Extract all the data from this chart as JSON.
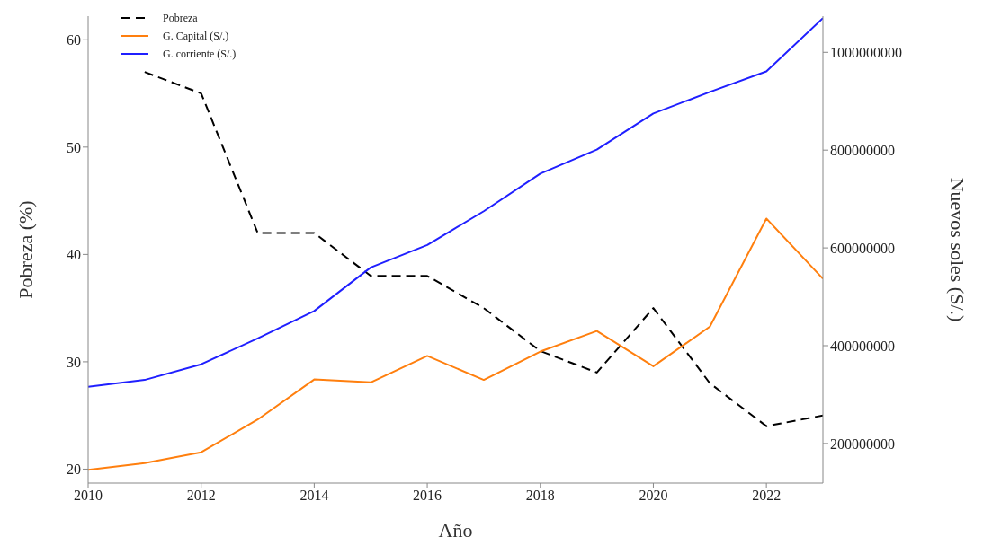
{
  "chart_data": {
    "type": "line",
    "xlabel": "Año",
    "ylabel": "Pobreza (%)",
    "y2label": "Nuevos soles (S/.)",
    "x": [
      2010,
      2011,
      2012,
      2013,
      2014,
      2015,
      2016,
      2017,
      2018,
      2019,
      2020,
      2021,
      2022,
      2023
    ],
    "series": [
      {
        "name": "Pobreza",
        "color": "#000000",
        "line_style": "dashed",
        "values": [
          null,
          57,
          55,
          42,
          42,
          38,
          38,
          35,
          31,
          29,
          35,
          28,
          24,
          25
        ]
      },
      {
        "name": "G. Capital (S/.)",
        "color": "#ff7f0e",
        "axis": "y2",
        "line_style": "solid",
        "values": [
          146000000,
          160000000,
          182000000,
          249000000,
          331000000,
          325000000,
          379000000,
          330000000,
          388000000,
          430000000,
          358000000,
          439000000,
          660000000,
          537000000
        ]
      },
      {
        "name": "G. corriente (S/.)",
        "color": "#1f1fff",
        "axis": "y2",
        "line_style": "solid",
        "values": [
          316000000,
          330000000,
          362000000,
          415000000,
          471000000,
          560000000,
          606000000,
          675000000,
          752000000,
          801000000,
          875000000,
          919000000,
          961000000,
          1070000000
        ]
      }
    ],
    "xlim": [
      2010,
      2023
    ],
    "xticks": [
      2010,
      2012,
      2014,
      2016,
      2018,
      2020,
      2022
    ],
    "ylim": [
      18.7,
      62.2
    ],
    "yticks": [
      20,
      30,
      40,
      50,
      60
    ],
    "y2lim": [
      119000000,
      1074000000
    ],
    "y2ticks": [
      200000000,
      400000000,
      600000000,
      800000000,
      1000000000
    ],
    "grid": false,
    "legend": "top left",
    "marker": "none"
  }
}
